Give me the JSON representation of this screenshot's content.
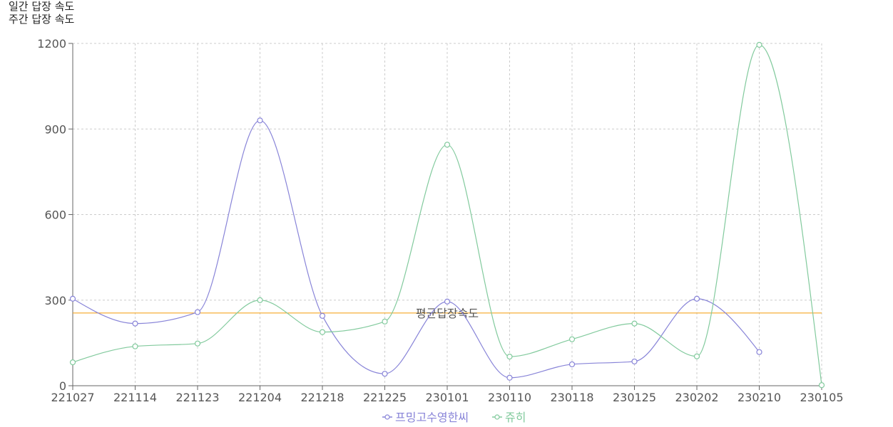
{
  "menu": {
    "daily": "일간 답장 속도",
    "weekly": "주간 답장 속도"
  },
  "chart_data": {
    "type": "line",
    "categories": [
      "221027",
      "221114",
      "221123",
      "221204",
      "221218",
      "221225",
      "230101",
      "230110",
      "230118",
      "230125",
      "230202",
      "230210",
      "230105"
    ],
    "ylim": [
      0,
      1200
    ],
    "yticks": [
      0,
      300,
      600,
      900,
      1200
    ],
    "grid": true,
    "legend": "bottom",
    "series": [
      {
        "name": "프밍고수영한씨",
        "color": "#8884d8",
        "values": [
          305,
          218,
          258,
          930,
          245,
          42,
          295,
          28,
          75,
          85,
          305,
          118,
          null
        ]
      },
      {
        "name": "쥬히",
        "color": "#82ca9d",
        "values": [
          82,
          138,
          148,
          300,
          188,
          225,
          845,
          102,
          163,
          218,
          103,
          1195,
          2
        ]
      }
    ],
    "reference_line": {
      "label": "평균답장속도",
      "value": 255,
      "color": "#f5a623"
    }
  }
}
